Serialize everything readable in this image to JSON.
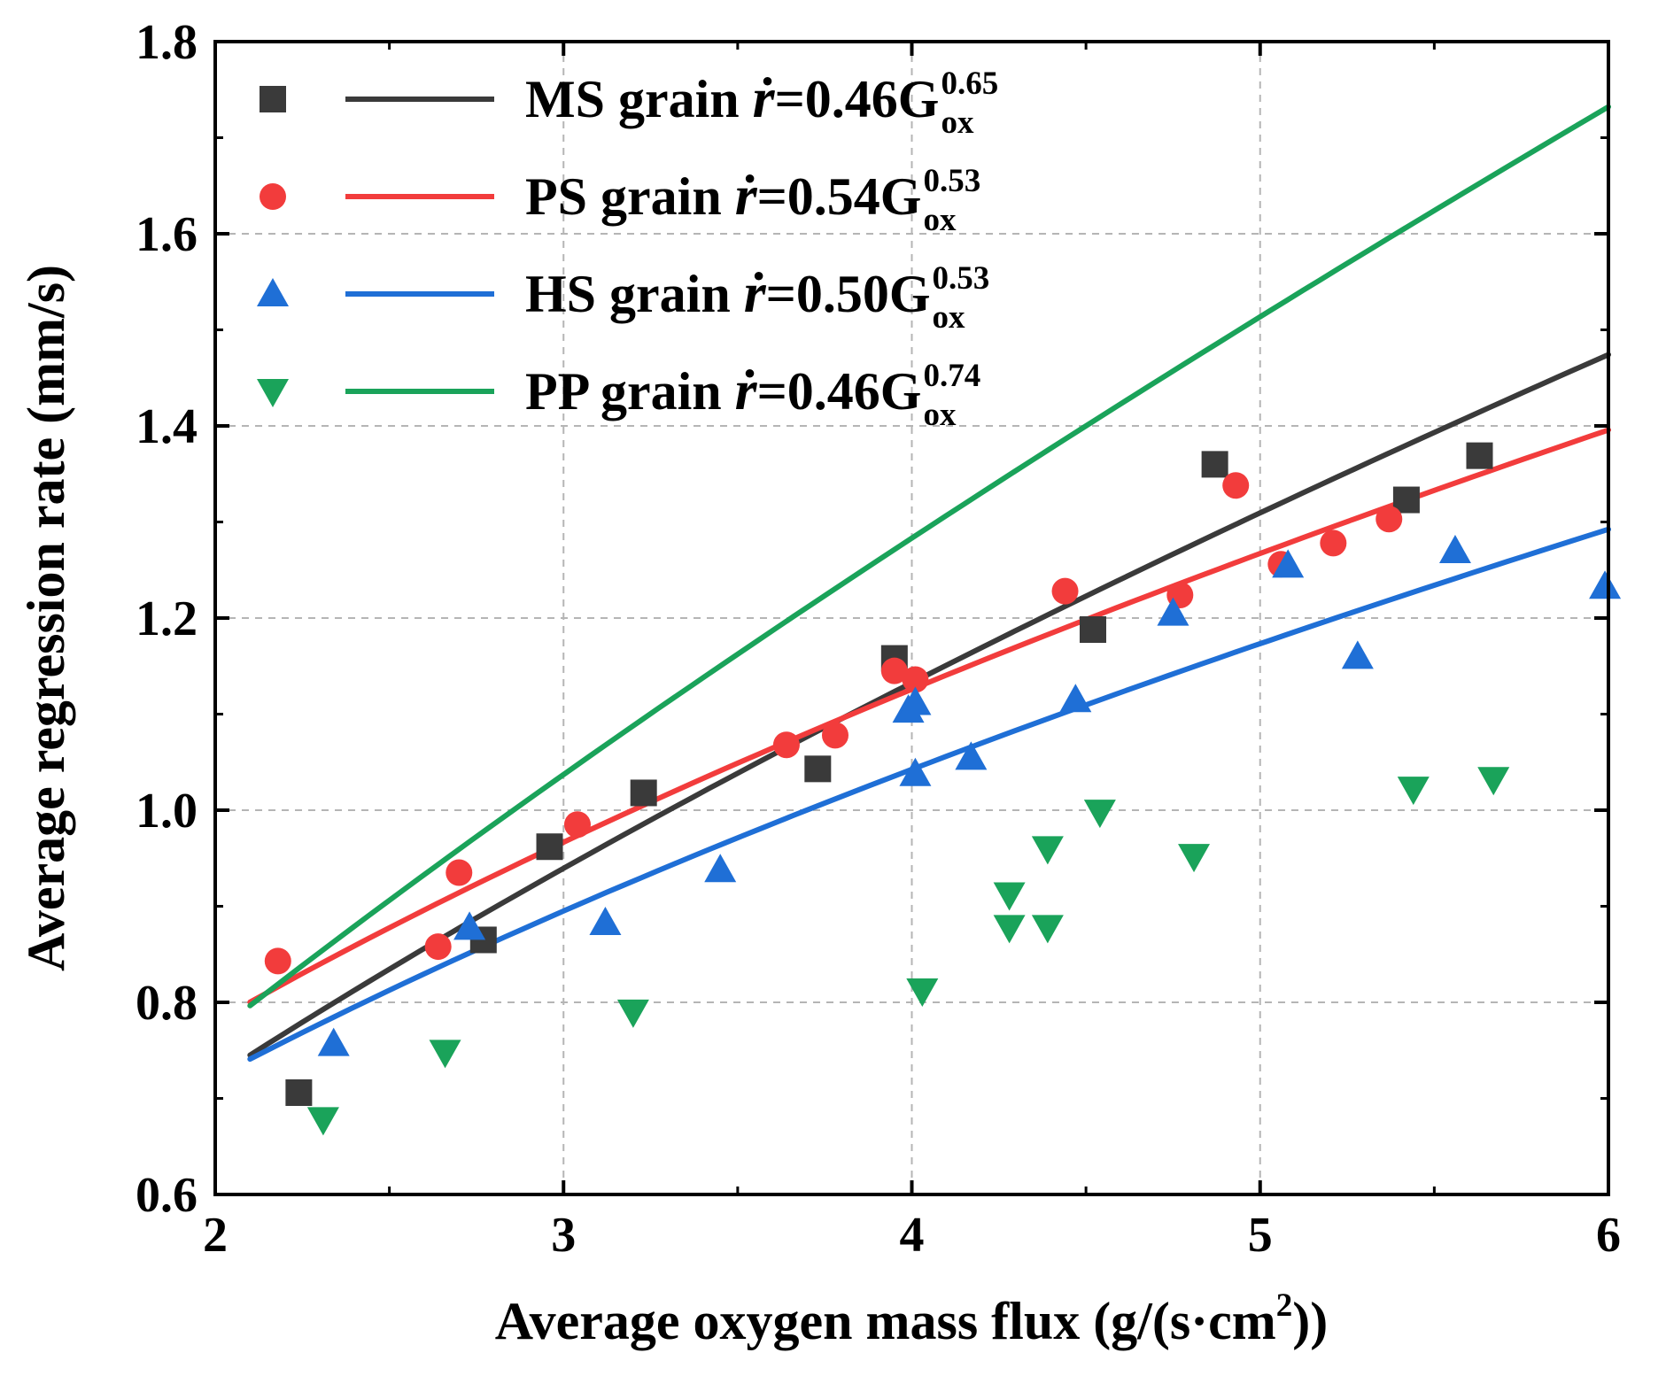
{
  "chart_data": {
    "type": "scatter",
    "xlabel": "Average oxygen mass flux (g/(s·cm",
    "xlabel_sup": "2",
    "xlabel_end": "))",
    "ylabel": "Average regression rate (mm/s)",
    "xlim": [
      2,
      6
    ],
    "ylim": [
      0.6,
      1.8
    ],
    "x_ticks": [
      "2",
      "3",
      "4",
      "5",
      "6"
    ],
    "y_ticks": [
      "0.6",
      "0.8",
      "1.0",
      "1.2",
      "1.4",
      "1.6",
      "1.8"
    ],
    "grid": true,
    "legend_position": "top-left",
    "series": [
      {
        "name": "MS grain",
        "marker": "square",
        "color": "#3a3a3a",
        "fit": {
          "a": 0.46,
          "n": 0.65,
          "x_range": [
            2.1,
            6.0
          ]
        },
        "eq_prefix": "=0.46G",
        "eq_sup": "0.65",
        "eq_sub": "ox",
        "points": [
          [
            2.24,
            0.706
          ],
          [
            2.77,
            0.865
          ],
          [
            2.96,
            0.962
          ],
          [
            3.23,
            1.018
          ],
          [
            3.73,
            1.043
          ],
          [
            3.95,
            1.158
          ],
          [
            4.52,
            1.188
          ],
          [
            4.87,
            1.36
          ],
          [
            5.42,
            1.323
          ],
          [
            5.63,
            1.369
          ]
        ]
      },
      {
        "name": "PS  grain",
        "marker": "circle",
        "color": "#f23c3c",
        "fit": {
          "a": 0.54,
          "n": 0.53,
          "x_range": [
            2.1,
            6.0
          ]
        },
        "eq_prefix": "=0.54G",
        "eq_sup": "0.53",
        "eq_sub": "ox",
        "points": [
          [
            2.18,
            0.843
          ],
          [
            2.64,
            0.858
          ],
          [
            2.7,
            0.935
          ],
          [
            3.04,
            0.985
          ],
          [
            3.64,
            1.068
          ],
          [
            3.78,
            1.078
          ],
          [
            3.95,
            1.145
          ],
          [
            4.01,
            1.136
          ],
          [
            4.44,
            1.228
          ],
          [
            4.77,
            1.224
          ],
          [
            4.93,
            1.338
          ],
          [
            5.06,
            1.256
          ],
          [
            5.21,
            1.278
          ],
          [
            5.37,
            1.303
          ]
        ]
      },
      {
        "name": "HS grain",
        "marker": "triangle-up",
        "color": "#1f6fd6",
        "fit": {
          "a": 0.5,
          "n": 0.53,
          "x_range": [
            2.1,
            6.0
          ]
        },
        "eq_prefix": "=0.50G",
        "eq_sup": "0.53",
        "eq_sub": "ox",
        "points": [
          [
            2.34,
            0.757
          ],
          [
            2.73,
            0.878
          ],
          [
            3.12,
            0.883
          ],
          [
            3.45,
            0.938
          ],
          [
            3.99,
            1.104
          ],
          [
            4.01,
            1.112
          ],
          [
            4.01,
            1.038
          ],
          [
            4.17,
            1.055
          ],
          [
            4.47,
            1.115
          ],
          [
            4.75,
            1.205
          ],
          [
            5.08,
            1.255
          ],
          [
            5.28,
            1.16
          ],
          [
            5.56,
            1.27
          ],
          [
            5.99,
            1.233
          ]
        ]
      },
      {
        "name": "PP grain",
        "marker": "triangle-down",
        "color": "#1aa35a",
        "fit": {
          "a": 0.46,
          "n": 0.74,
          "x_range": [
            2.1,
            6.0
          ]
        },
        "eq_prefix": "=0.46G",
        "eq_sup": "0.74",
        "eq_sub": "ox",
        "points": [
          [
            2.31,
            0.678
          ],
          [
            2.66,
            0.748
          ],
          [
            3.2,
            0.79
          ],
          [
            4.03,
            0.812
          ],
          [
            4.28,
            0.912
          ],
          [
            4.28,
            0.878
          ],
          [
            4.39,
            0.96
          ],
          [
            4.39,
            0.878
          ],
          [
            4.54,
            0.998
          ],
          [
            4.81,
            0.952
          ],
          [
            5.44,
            1.022
          ],
          [
            5.67,
            1.032
          ]
        ]
      }
    ]
  }
}
